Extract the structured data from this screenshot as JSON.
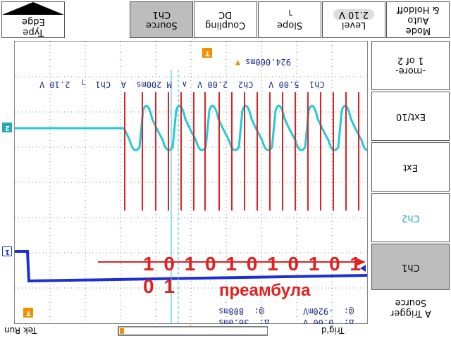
{
  "top_buttons": {
    "edge": {
      "label": "Edge",
      "sub": "Type"
    },
    "source": {
      "label": "Ch1",
      "sub": "Source"
    },
    "coupling": {
      "label": "DC",
      "sub": "Coupling"
    },
    "slope": {
      "label": "┐",
      "sub": "Slope"
    },
    "level": {
      "label": "2.10 V",
      "sub": "Level"
    },
    "mode": {
      "label": "& Holdoff",
      "sub": "Auto",
      "sub2": "Mode"
    }
  },
  "side_menu": {
    "more": {
      "label": "1 of 2",
      "sub": "-more-"
    },
    "ext10": {
      "label": "Ext/10"
    },
    "ext": {
      "label": "Ext"
    },
    "ch2": {
      "label": "Ch2"
    },
    "ch1": {
      "label": "Ch1"
    },
    "trigger": {
      "label": "Source",
      "sub": "A Trigger"
    }
  },
  "readouts": {
    "trigger_time": "924.000ms",
    "status_line": "Ch1  5.00 V   Ch2  2.00 V  ∧  M 200ms  A  Ch1  ┐  2.10 V",
    "cursor_at1": "@:  808ms",
    "cursor_at2": "@:  -920mV",
    "cursor_delta1": "Δ:  36.0ms",
    "cursor_delta2": "Δ:  0.00 V"
  },
  "markers": {
    "ch2": "2",
    "ch1": "1",
    "trig": "T"
  },
  "annotations": {
    "bits": "1 0 1 0 1 0 1 0 1 0 1 0 1",
    "label": "преамбула"
  },
  "status": {
    "left": "Tek Run",
    "right": "Trig'd"
  },
  "colors": {
    "ch1": "#1c2fd6",
    "ch2": "#25c9d8",
    "annotation": "#e32020",
    "marker_orange": "#f29000"
  }
}
